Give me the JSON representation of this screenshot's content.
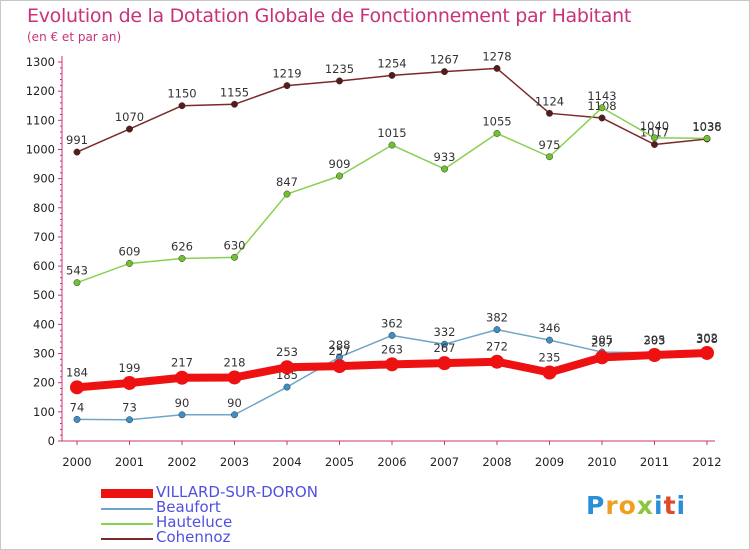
{
  "chart_data": {
    "type": "line",
    "title": "Evolution de la Dotation Globale de Fonctionnement par Habitant",
    "subtitle": "(en € et par an)",
    "x": [
      "2000",
      "2001",
      "2002",
      "2003",
      "2004",
      "2005",
      "2006",
      "2007",
      "2008",
      "2009",
      "2010",
      "2011",
      "2012"
    ],
    "ylim": [
      0,
      1300
    ],
    "yticks": [
      0,
      100,
      200,
      300,
      400,
      500,
      600,
      700,
      800,
      900,
      1000,
      1100,
      1200,
      1300
    ],
    "grid": false,
    "legend_position": "bottom-left",
    "series": [
      {
        "name": "Cohennoz",
        "color": "#7a2a2a",
        "point_color": "#5a1a1a",
        "values": [
          991,
          1070,
          1150,
          1155,
          1219,
          1235,
          1254,
          1267,
          1278,
          1124,
          1108,
          1017,
          1036
        ]
      },
      {
        "name": "Hauteluce",
        "color": "#88d050",
        "point_color": "#70c030",
        "values": [
          543,
          609,
          626,
          630,
          847,
          909,
          1015,
          933,
          1055,
          975,
          1143,
          1040,
          1038
        ]
      },
      {
        "name": "Beaufort",
        "color": "#6fa6c8",
        "point_color": "#3d8fc8",
        "values": [
          74,
          73,
          90,
          90,
          185,
          288,
          362,
          332,
          382,
          346,
          305,
          303,
          308
        ]
      },
      {
        "name": "VILLARD-SUR-DORON",
        "color": "#ee1111",
        "point_color": "#ee1111",
        "values": [
          184,
          199,
          217,
          218,
          253,
          257,
          263,
          267,
          272,
          235,
          287,
          295,
          302
        ]
      }
    ]
  },
  "legend": {
    "items": [
      {
        "name": "VILLARD-SUR-DORON",
        "color": "#ee1111"
      },
      {
        "name": "Beaufort",
        "color": "#6fa6c8"
      },
      {
        "name": "Hauteluce",
        "color": "#88d050"
      },
      {
        "name": "Cohennoz",
        "color": "#7a2a2a"
      }
    ]
  },
  "logo": {
    "text": "Proxiti"
  }
}
